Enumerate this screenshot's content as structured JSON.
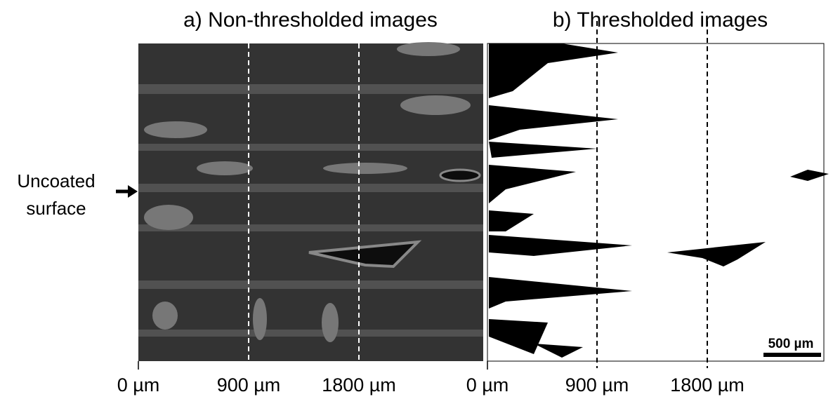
{
  "panels": [
    {
      "title": "a) Non-thresholded images",
      "ticks": [
        "0 µm",
        "900 µm",
        "1800 µm"
      ]
    },
    {
      "title": "b) Thresholded images",
      "ticks": [
        "0 µm",
        "900 µm",
        "1800 µm"
      ]
    }
  ],
  "side_label": {
    "line1": "Uncoated",
    "line2": "surface"
  },
  "scale_bar": "500 µm"
}
